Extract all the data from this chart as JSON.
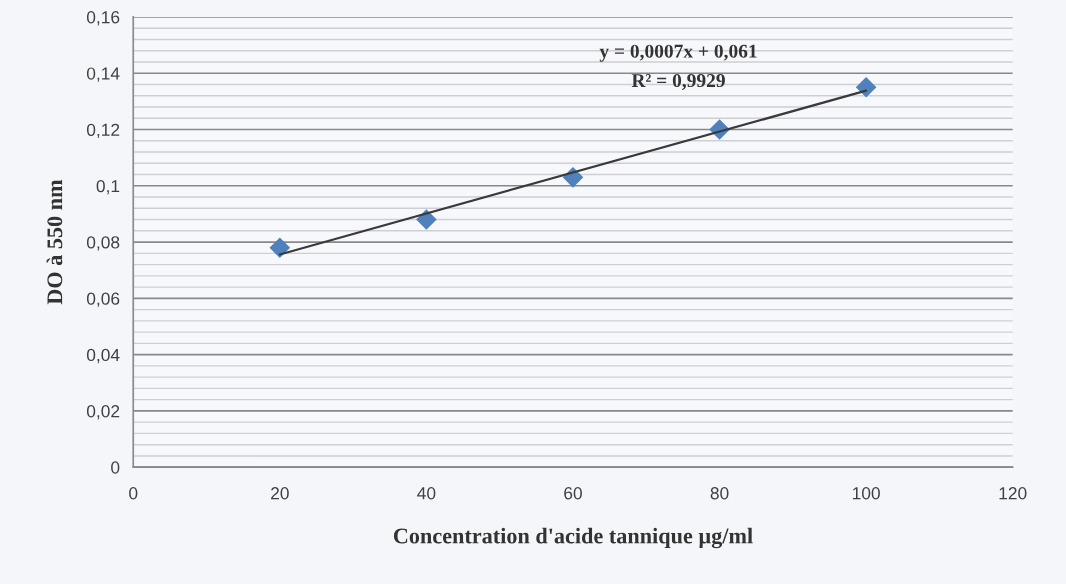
{
  "chart_data": {
    "type": "scatter",
    "xlabel": "Concentration d'acide tannique µg/ml",
    "ylabel": "DO à 550 nm",
    "x": [
      20,
      40,
      60,
      80,
      100
    ],
    "series": [
      {
        "color": "#4f81bd",
        "values": [
          0.078,
          0.088,
          0.103,
          0.12,
          0.135
        ],
        "marker": "diamond"
      },
      {
        "type": "line",
        "color": "#3a3a3a",
        "x": [
          20,
          100
        ],
        "values": [
          0.0756,
          0.1338
        ],
        "marker": "none",
        "line_style": "solid"
      }
    ],
    "annotations": [
      "y = 0,0007x + 0,061",
      "R² = 0,9929"
    ],
    "xlim": [
      0,
      120
    ],
    "xticks": [
      0,
      20,
      40,
      60,
      80,
      100,
      120
    ],
    "ylim": [
      0,
      0.16
    ],
    "yticks": [
      0,
      {
        "value": 0.02,
        "label": "0,02"
      },
      {
        "value": 0.04,
        "label": "0,04"
      },
      {
        "value": 0.06,
        "label": "0,06"
      },
      {
        "value": 0.08,
        "label": "0,08"
      },
      {
        "value": 0.1,
        "label": "0,1"
      },
      {
        "value": 0.12,
        "label": "0,12"
      },
      {
        "value": 0.14,
        "label": "0,14"
      },
      {
        "value": 0.16,
        "label": "0,16"
      }
    ],
    "grid": "y",
    "legend": false
  }
}
